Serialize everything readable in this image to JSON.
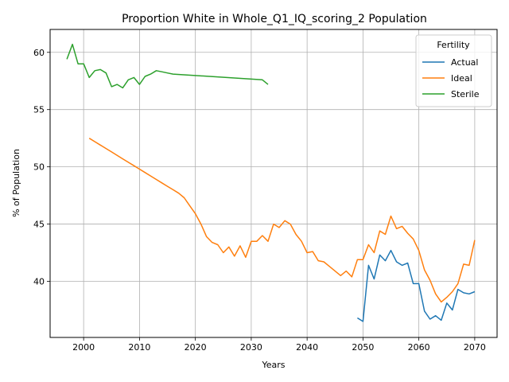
{
  "chart_data": {
    "type": "line",
    "title": "Proportion White in Whole_Q1_IQ_scoring_2 Population",
    "xlabel": "Years",
    "ylabel": "% of Population",
    "xlim": [
      1994,
      2074
    ],
    "ylim": [
      35.1,
      62.0
    ],
    "xticks": [
      2000,
      2010,
      2020,
      2030,
      2040,
      2050,
      2060,
      2070
    ],
    "yticks": [
      40,
      45,
      50,
      55,
      60
    ],
    "grid": true,
    "legend": {
      "title": "Fertility",
      "placement": "top-right"
    },
    "series": [
      {
        "name": "Actual",
        "color": "#1f77b4",
        "x": [
          2049,
          2050,
          2051,
          2052,
          2053,
          2054,
          2055,
          2056,
          2057,
          2058,
          2059,
          2060,
          2061,
          2062,
          2063,
          2064,
          2065,
          2066,
          2067,
          2068,
          2069,
          2070
        ],
        "y": [
          36.8,
          36.5,
          41.4,
          40.2,
          42.3,
          41.8,
          42.7,
          41.7,
          41.4,
          41.6,
          39.8,
          39.8,
          37.4,
          36.7,
          37.0,
          36.6,
          38.1,
          37.5,
          39.3,
          39.0,
          38.9,
          39.1
        ]
      },
      {
        "name": "Ideal",
        "color": "#ff7f0e",
        "x": [
          2001,
          2002,
          2003,
          2004,
          2005,
          2006,
          2007,
          2008,
          2009,
          2010,
          2011,
          2012,
          2013,
          2014,
          2015,
          2016,
          2017,
          2018,
          2019,
          2020,
          2021,
          2022,
          2023,
          2024,
          2025,
          2026,
          2027,
          2028,
          2029,
          2030,
          2031,
          2032,
          2033,
          2034,
          2035,
          2036,
          2037,
          2038,
          2039,
          2040,
          2041,
          2042,
          2043,
          2044,
          2045,
          2046,
          2047,
          2048,
          2049,
          2050,
          2051,
          2052,
          2053,
          2054,
          2055,
          2056,
          2057,
          2058,
          2059,
          2060,
          2061,
          2062,
          2063,
          2064,
          2065,
          2066,
          2067,
          2068,
          2069,
          2070
        ],
        "y": [
          52.5,
          52.2,
          51.9,
          51.6,
          51.3,
          51.0,
          50.7,
          50.4,
          50.1,
          49.8,
          49.5,
          49.2,
          48.9,
          48.6,
          48.3,
          48.0,
          47.7,
          47.3,
          46.6,
          45.9,
          45.0,
          43.9,
          43.4,
          43.2,
          42.5,
          43.0,
          42.2,
          43.1,
          42.1,
          43.5,
          43.5,
          44.0,
          43.5,
          45.0,
          44.7,
          45.3,
          45.0,
          44.1,
          43.5,
          42.5,
          42.6,
          41.8,
          41.7,
          41.3,
          40.9,
          40.5,
          40.9,
          40.4,
          41.9,
          41.9,
          43.2,
          42.5,
          44.4,
          44.1,
          45.7,
          44.6,
          44.8,
          44.2,
          43.7,
          42.7,
          41.0,
          40.1,
          38.9,
          38.2,
          38.6,
          39.1,
          39.8,
          41.5,
          41.4,
          43.6
        ]
      },
      {
        "name": "Sterile",
        "color": "#2ca02c",
        "x": [
          1997,
          1998,
          1999,
          2000,
          2001,
          2002,
          2003,
          2004,
          2005,
          2006,
          2007,
          2008,
          2009,
          2010,
          2011,
          2012,
          2013,
          2014,
          2015,
          2016,
          2032,
          2033
        ],
        "y": [
          59.4,
          60.7,
          59.0,
          59.0,
          57.8,
          58.4,
          58.5,
          58.2,
          57.0,
          57.2,
          56.9,
          57.6,
          57.8,
          57.2,
          57.9,
          58.1,
          58.4,
          58.3,
          58.2,
          58.1,
          57.6,
          57.2
        ]
      }
    ]
  }
}
